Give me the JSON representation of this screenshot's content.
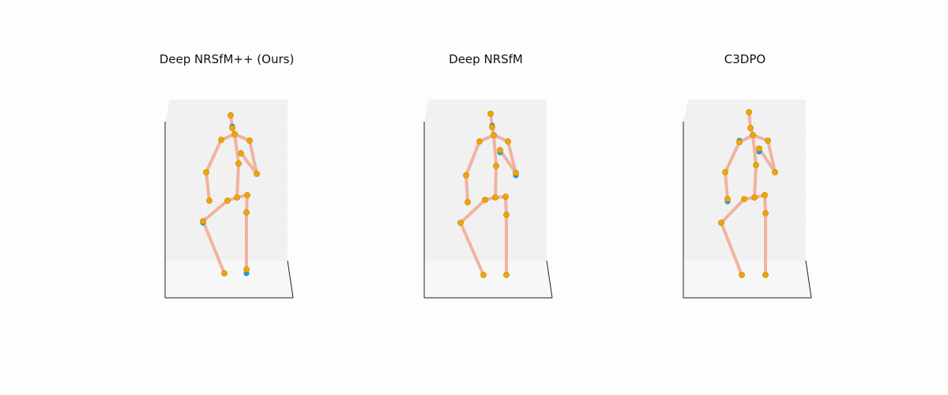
{
  "colors": {
    "background": "#fdfdfd",
    "bone": "#f2a890",
    "ground_truth_joint": "#1f9ed4",
    "predicted_joint": "#f0a500",
    "axis_line": "#222222",
    "pane": "#f3f3f3"
  },
  "panels": [
    {
      "id": "ours",
      "title": "Deep NRSfM++ (Ours)"
    },
    {
      "id": "deep-nrsfm",
      "title": "Deep NRSfM"
    },
    {
      "id": "c3dpo",
      "title": "C3DPO"
    }
  ]
}
